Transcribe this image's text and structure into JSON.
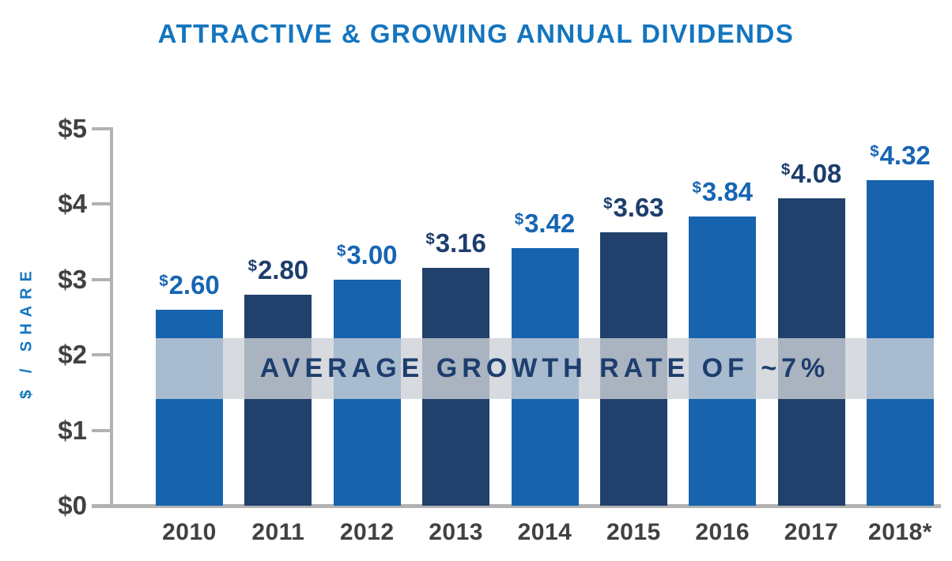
{
  "chart_data": {
    "type": "bar",
    "title": "ATTRACTIVE & GROWING ANNUAL DIVIDENDS",
    "ylabel": "$ / SHARE",
    "xlabel": "",
    "currency_symbol": "$",
    "categories": [
      "2010",
      "2011",
      "2012",
      "2013",
      "2014",
      "2015",
      "2016",
      "2017",
      "2018*"
    ],
    "values": [
      2.6,
      2.8,
      3.0,
      3.16,
      3.42,
      3.63,
      3.84,
      4.08,
      4.32
    ],
    "value_labels": [
      "2.60",
      "2.80",
      "3.00",
      "3.16",
      "3.42",
      "3.63",
      "3.84",
      "4.08",
      "4.32"
    ],
    "y_ticks": [
      {
        "value": 5,
        "label": "$5"
      },
      {
        "value": 4,
        "label": "$4"
      },
      {
        "value": 3,
        "label": "$3"
      },
      {
        "value": 2,
        "label": "$2"
      },
      {
        "value": 1,
        "label": "$1"
      },
      {
        "value": 0,
        "label": "$0"
      }
    ],
    "ylim": [
      0,
      5
    ],
    "grid": false,
    "legend": null,
    "annotation": {
      "text": "AVERAGE GROWTH RATE OF ~7%",
      "band_from_value": 1.42,
      "band_to_value": 2.22
    },
    "colors": {
      "bar_light_blue": "#1763ae",
      "bar_dark_navy": "#21406b",
      "label_light_blue": "#1765b3",
      "label_dark_navy": "#1d3e6d",
      "title_blue": "#1475be",
      "axis_gray": "#b2b2b2",
      "tick_text_gray": "#414042",
      "band_text_navy": "#1d3e6d",
      "band_background": "rgba(205,209,215,0.8)"
    }
  }
}
